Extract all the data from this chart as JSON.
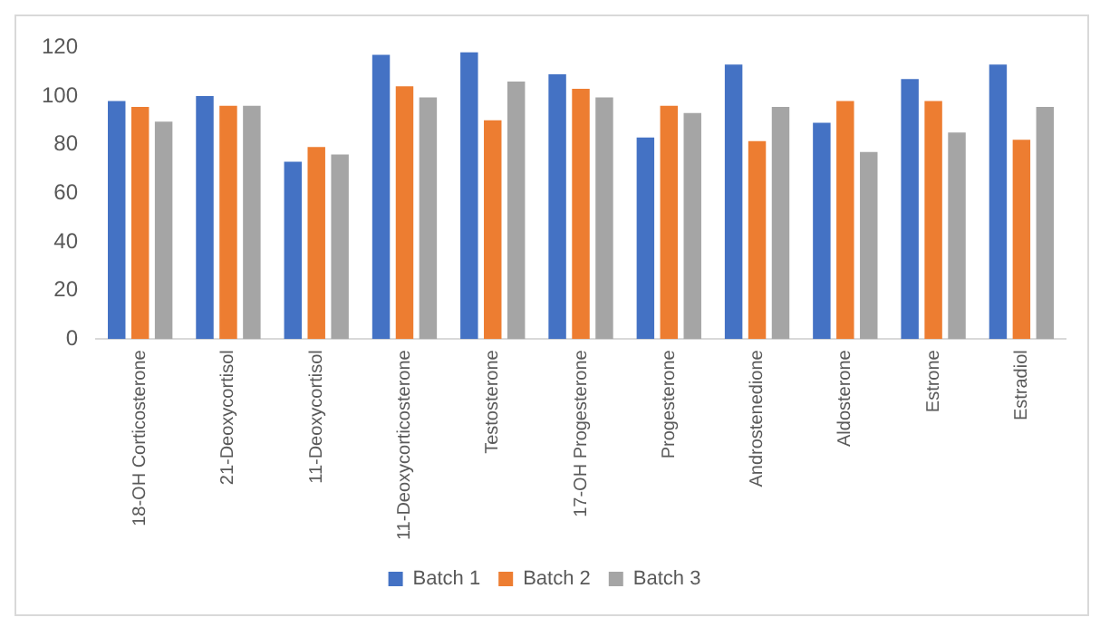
{
  "chart_data": {
    "type": "bar",
    "categories": [
      "18-OH Corticosterone",
      "21-Deoxycortisol",
      "11-Deoxycortisol",
      "11-Deoxycorticosterone",
      "Testosterone",
      "17-OH Progesterone",
      "Progesterone",
      "Androstenedione",
      "Aldosterone",
      "Estrone",
      "Estradiol"
    ],
    "series": [
      {
        "name": "Batch 1",
        "color": "#4472c4",
        "values": [
          98,
          100,
          73,
          117,
          118,
          109,
          83,
          113,
          89,
          107,
          113
        ]
      },
      {
        "name": "Batch 2",
        "color": "#ed7d31",
        "values": [
          95.5,
          96,
          79,
          104,
          90,
          103,
          96,
          81.5,
          98,
          98,
          82
        ]
      },
      {
        "name": "Batch 3",
        "color": "#a5a5a5",
        "values": [
          89.5,
          96,
          76,
          99.5,
          106,
          99.5,
          93,
          95.5,
          77,
          85,
          95.5
        ]
      }
    ],
    "ylim": [
      0,
      120
    ],
    "yticks": [
      0,
      20,
      40,
      60,
      80,
      100,
      120
    ],
    "grid": false,
    "legend": "bottom"
  }
}
